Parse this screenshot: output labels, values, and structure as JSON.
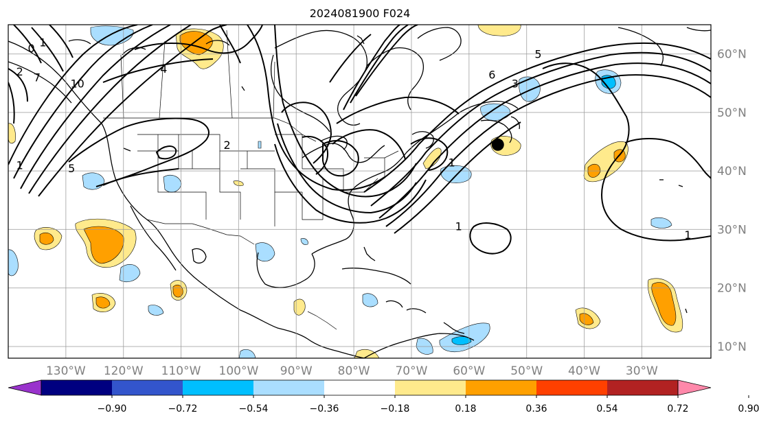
{
  "title": "2024081900 F024",
  "map": {
    "lon_range": [
      -140,
      -18
    ],
    "lat_range": [
      8,
      65
    ],
    "lon_ticks": [
      "130°W",
      "120°W",
      "110°W",
      "100°W",
      "90°W",
      "80°W",
      "70°W",
      "60°W",
      "50°W",
      "40°W",
      "30°W"
    ],
    "lon_tick_values": [
      -130,
      -120,
      -110,
      -100,
      -90,
      -80,
      -70,
      -60,
      -50,
      -40,
      -30
    ],
    "lat_ticks": [
      "60°N",
      "50°N",
      "40°N",
      "30°N",
      "20°N",
      "10°N"
    ],
    "lat_tick_values": [
      60,
      50,
      40,
      30,
      20,
      10
    ],
    "grid": true,
    "marker": {
      "name": "storm-center-dot",
      "lon": -55,
      "lat": 44.5,
      "color": "#000000"
    }
  },
  "contour_labels": [
    {
      "text": "1",
      "lon": -61.8,
      "lat": 30.6
    },
    {
      "text": "1",
      "lon": -22,
      "lat": 29.1
    },
    {
      "text": "1",
      "lon": -63,
      "lat": 41.5
    },
    {
      "text": "1",
      "lon": -138,
      "lat": 41
    },
    {
      "text": "2",
      "lon": -138,
      "lat": 57
    },
    {
      "text": "2",
      "lon": -102,
      "lat": 44.5
    },
    {
      "text": "3",
      "lon": -52,
      "lat": 55
    },
    {
      "text": "4",
      "lon": -113,
      "lat": 57.5
    },
    {
      "text": "5",
      "lon": -129,
      "lat": 40.5
    },
    {
      "text": "5",
      "lon": -48,
      "lat": 60
    },
    {
      "text": "6",
      "lon": -56,
      "lat": 56.5
    },
    {
      "text": "7",
      "lon": -135,
      "lat": 56
    },
    {
      "text": "0",
      "lon": -136,
      "lat": 61
    },
    {
      "text": "1",
      "lon": -134,
      "lat": 62
    },
    {
      "text": "10",
      "lon": -128,
      "lat": 55
    }
  ],
  "colorbar": {
    "ticks": [
      "−0.90",
      "−0.72",
      "−0.54",
      "−0.36",
      "−0.18",
      "0.18",
      "0.36",
      "0.54",
      "0.72",
      "0.90"
    ],
    "colors": [
      "#9933cc",
      "#000080",
      "#3355cc",
      "#00bfff",
      "#aadeff",
      "#ffffff",
      "#ffea8c",
      "#ffa000",
      "#ff4000",
      "#b22222",
      "#ff88aa"
    ],
    "extend": "both"
  }
}
